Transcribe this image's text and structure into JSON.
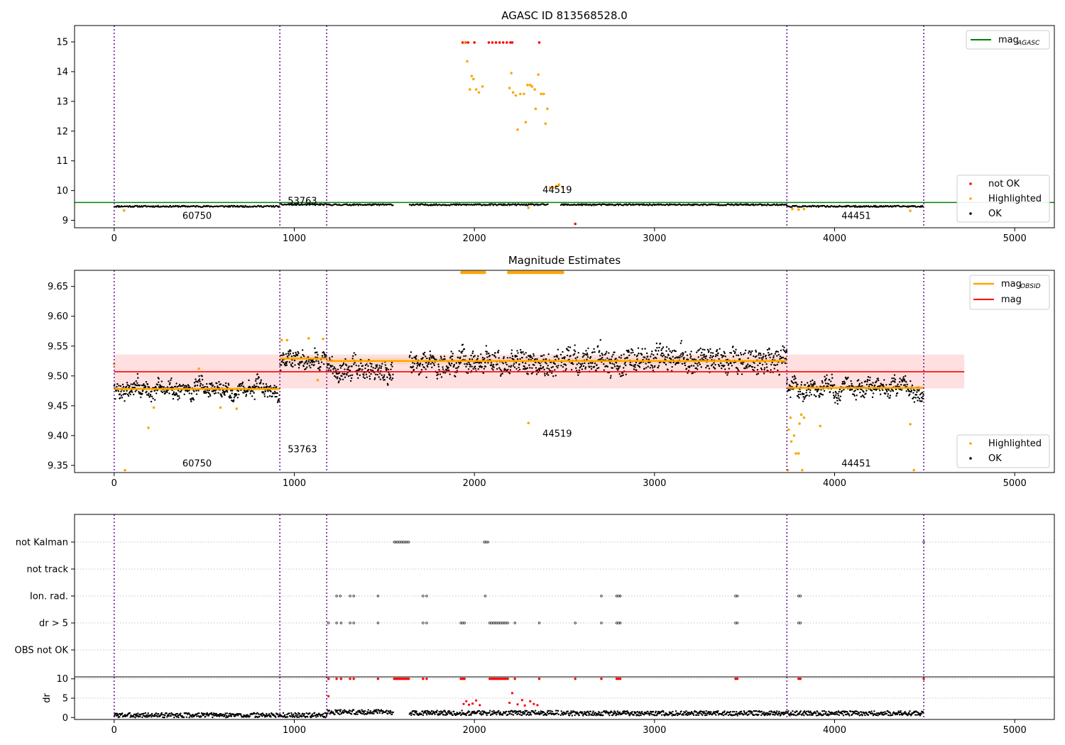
{
  "chart_data": [
    {
      "type": "scatter",
      "title": "AGASC ID 813568528.0",
      "xlim": [
        -220,
        5220
      ],
      "ylim": [
        8.75,
        15.55
      ],
      "x_ticks": [
        "0",
        "1000",
        "2000",
        "3000",
        "4000",
        "5000"
      ],
      "x_tick_values": [
        0,
        1000,
        2000,
        3000,
        4000,
        5000
      ],
      "y_ticks": [
        "9",
        "10",
        "11",
        "12",
        "13",
        "14",
        "15"
      ],
      "y_tick_values": [
        9,
        10,
        11,
        12,
        13,
        14,
        15
      ],
      "obs_boundaries": [
        0,
        920,
        1180,
        3735,
        4495
      ],
      "obs_labels": [
        {
          "text": "60750",
          "x": 460,
          "y": 9.05
        },
        {
          "text": "53763",
          "x": 1045,
          "y": 9.55
        },
        {
          "text": "44519",
          "x": 2460,
          "y": 9.92
        },
        {
          "text": "44451",
          "x": 4120,
          "y": 9.05
        }
      ],
      "mag_agasc": 9.6,
      "legend": {
        "position": "top-right",
        "entries": [
          "mag",
          "AGASC"
        ]
      },
      "legend2": {
        "position": "bottom-right",
        "entries": [
          "not OK",
          "Highlighted",
          "OK"
        ]
      },
      "segments": [
        {
          "x0": 0,
          "x1": 920,
          "mag": 9.47
        },
        {
          "x0": 920,
          "x1": 1180,
          "mag": 9.53
        },
        {
          "x0": 1180,
          "x1": 1550,
          "mag": 9.525
        },
        {
          "x0": 1640,
          "x1": 2410,
          "mag": 9.525
        },
        {
          "x0": 2480,
          "x1": 3735,
          "mag": 9.525
        },
        {
          "x0": 3735,
          "x1": 4495,
          "mag": 9.47
        }
      ],
      "series": [
        {
          "name": "not OK",
          "color": "#ff0000",
          "points": [
            [
              1935,
              14.98
            ],
            [
              1950,
              14.98
            ],
            [
              1965,
              14.98
            ],
            [
              2000,
              14.98
            ],
            [
              2080,
              14.98
            ],
            [
              2100,
              14.98
            ],
            [
              2120,
              14.98
            ],
            [
              2140,
              14.98
            ],
            [
              2160,
              14.98
            ],
            [
              2180,
              14.98
            ],
            [
              2200,
              14.98
            ],
            [
              2210,
              14.98
            ],
            [
              2360,
              14.98
            ],
            [
              2560,
              8.88
            ]
          ]
        },
        {
          "name": "Highlighted",
          "color": "#ffa500",
          "points": [
            [
              55,
              9.33
            ],
            [
              1945,
              14.98
            ],
            [
              1960,
              14.35
            ],
            [
              1975,
              13.4
            ],
            [
              1985,
              13.85
            ],
            [
              1995,
              13.75
            ],
            [
              2010,
              13.4
            ],
            [
              2025,
              13.3
            ],
            [
              2045,
              13.5
            ],
            [
              2195,
              13.45
            ],
            [
              2205,
              13.95
            ],
            [
              2215,
              13.3
            ],
            [
              2230,
              13.2
            ],
            [
              2240,
              12.05
            ],
            [
              2255,
              13.25
            ],
            [
              2275,
              13.25
            ],
            [
              2285,
              12.3
            ],
            [
              2295,
              13.55
            ],
            [
              2310,
              13.55
            ],
            [
              2320,
              13.5
            ],
            [
              2335,
              13.4
            ],
            [
              2340,
              12.75
            ],
            [
              2355,
              13.9
            ],
            [
              2370,
              13.25
            ],
            [
              2385,
              13.25
            ],
            [
              2395,
              12.25
            ],
            [
              2405,
              12.75
            ],
            [
              2420,
              10.1
            ],
            [
              2440,
              10.1
            ],
            [
              2455,
              10.15
            ],
            [
              2470,
              10.2
            ],
            [
              2490,
              10.1
            ],
            [
              2300,
              9.42
            ],
            [
              3765,
              9.38
            ],
            [
              3800,
              9.36
            ],
            [
              3830,
              9.38
            ],
            [
              4420,
              9.32
            ]
          ]
        }
      ]
    },
    {
      "type": "scatter",
      "title": "Magnitude Estimates",
      "xlim": [
        -220,
        5220
      ],
      "ylim": [
        9.338,
        9.677
      ],
      "x_ticks": [
        "0",
        "1000",
        "2000",
        "3000",
        "4000",
        "5000"
      ],
      "x_tick_values": [
        0,
        1000,
        2000,
        3000,
        4000,
        5000
      ],
      "y_ticks": [
        "9.35",
        "9.40",
        "9.45",
        "9.50",
        "9.55",
        "9.60",
        "9.65"
      ],
      "y_tick_values": [
        9.35,
        9.4,
        9.45,
        9.5,
        9.55,
        9.6,
        9.65
      ],
      "obs_boundaries": [
        0,
        920,
        1180,
        3735,
        4495
      ],
      "obs_labels": [
        {
          "text": "60750",
          "x": 460,
          "y": 9.348
        },
        {
          "text": "53763",
          "x": 1045,
          "y": 9.372
        },
        {
          "text": "44519",
          "x": 2460,
          "y": 9.398
        },
        {
          "text": "44451",
          "x": 4120,
          "y": 9.348
        }
      ],
      "mag": 9.507,
      "mag_band": [
        9.479,
        9.536
      ],
      "mag_extent": [
        0,
        4720
      ],
      "legend": {
        "position": "top-right",
        "entries": [
          "mag",
          "OBSID",
          "mag"
        ]
      },
      "legend2": {
        "position": "bottom-right",
        "entries": [
          "Highlighted",
          "OK"
        ]
      },
      "segments": [
        {
          "x0": 0,
          "x1": 920,
          "mag": 9.478,
          "err": 0.004
        },
        {
          "x0": 920,
          "x1": 1180,
          "mag": 9.529,
          "err": 0.006
        },
        {
          "x0": 1180,
          "x1": 3735,
          "mag": 9.525,
          "err": 0.006
        },
        {
          "x0": 3735,
          "x1": 4495,
          "mag": 9.48,
          "err": 0.004
        }
      ],
      "ok_levels": [
        {
          "x0": 0,
          "x1": 920,
          "center": 9.478,
          "spread": 0.03
        },
        {
          "x0": 920,
          "x1": 1180,
          "center": 9.53,
          "spread": 0.032
        },
        {
          "x0": 1180,
          "x1": 1550,
          "center": 9.51,
          "spread": 0.045
        },
        {
          "x0": 1640,
          "x1": 2470,
          "center": 9.522,
          "spread": 0.045
        },
        {
          "x0": 2480,
          "x1": 3735,
          "center": 9.525,
          "spread": 0.05
        },
        {
          "x0": 3735,
          "x1": 4495,
          "center": 9.478,
          "spread": 0.035
        }
      ],
      "highlighted_points": [
        [
          0,
          9.52
        ],
        [
          60,
          9.342
        ],
        [
          190,
          9.413
        ],
        [
          220,
          9.447
        ],
        [
          470,
          9.512
        ],
        [
          590,
          9.447
        ],
        [
          680,
          9.445
        ],
        [
          930,
          9.56
        ],
        [
          960,
          9.56
        ],
        [
          1080,
          9.563
        ],
        [
          1130,
          9.493
        ],
        [
          1160,
          9.562
        ],
        [
          2300,
          9.421
        ],
        [
          3740,
          9.342
        ],
        [
          3745,
          9.41
        ],
        [
          3755,
          9.43
        ],
        [
          3760,
          9.39
        ],
        [
          3775,
          9.4
        ],
        [
          3785,
          9.37
        ],
        [
          3800,
          9.37
        ],
        [
          3805,
          9.42
        ],
        [
          3815,
          9.435
        ],
        [
          3820,
          9.342
        ],
        [
          3830,
          9.43
        ],
        [
          3920,
          9.416
        ],
        [
          4420,
          9.419
        ],
        [
          4440,
          9.342
        ]
      ],
      "clipped_ranges": [
        [
          1930,
          2060
        ],
        [
          2190,
          2490
        ]
      ]
    },
    {
      "type": "scatter",
      "title": "",
      "flag_categories": [
        "not Kalman",
        "not track",
        "Ion. rad.",
        "dr > 5",
        "OBS not OK"
      ],
      "flag_points": {
        "not Kalman": [
          1555,
          1565,
          1575,
          1585,
          1595,
          1605,
          1615,
          1625,
          1635,
          2055,
          2065,
          2075,
          4495
        ],
        "not track": [],
        "Ion. rad.": [
          1235,
          1255,
          1310,
          1330,
          1465,
          1715,
          1735,
          2060,
          2705,
          2790,
          2800,
          2810,
          3450,
          3460,
          3800,
          3810
        ],
        "dr > 5": [
          1190,
          1235,
          1260,
          1310,
          1330,
          1465,
          1715,
          1735,
          1925,
          1935,
          1945,
          2085,
          2095,
          2105,
          2115,
          2125,
          2135,
          2145,
          2155,
          2165,
          2175,
          2185,
          2225,
          2360,
          2560,
          2705,
          2790,
          2800,
          2810,
          3450,
          3460,
          3800,
          3810
        ],
        "OBS not OK": []
      },
      "obs_boundaries": [
        0,
        920,
        1180,
        3735,
        4495
      ],
      "xlim": [
        -220,
        5220
      ]
    },
    {
      "type": "scatter",
      "title": "",
      "ylabel": "dr",
      "xlim": [
        -220,
        5220
      ],
      "ylim": [
        -0.5,
        10.5
      ],
      "x_ticks": [
        "0",
        "1000",
        "2000",
        "3000",
        "4000",
        "5000"
      ],
      "x_tick_values": [
        0,
        1000,
        2000,
        3000,
        4000,
        5000
      ],
      "y_ticks": [
        "0",
        "5",
        "10"
      ],
      "y_tick_values": [
        0,
        5,
        10
      ],
      "obs_boundaries": [
        0,
        920,
        1180,
        3735,
        4495
      ],
      "dr_levels": [
        {
          "x0": 0,
          "x1": 1180,
          "mean": 0.6
        },
        {
          "x0": 1180,
          "x1": 1550,
          "mean": 1.4
        },
        {
          "x0": 1640,
          "x1": 2470,
          "mean": 1.2
        },
        {
          "x0": 2480,
          "x1": 4495,
          "mean": 1.1
        }
      ],
      "red_points_top": [
        1190,
        1235,
        1260,
        1310,
        1330,
        1465,
        1555,
        1565,
        1575,
        1585,
        1595,
        1605,
        1615,
        1625,
        1635,
        1715,
        1735,
        1925,
        1935,
        1945,
        2085,
        2095,
        2105,
        2115,
        2125,
        2135,
        2145,
        2155,
        2165,
        2175,
        2185,
        2225,
        2360,
        2560,
        2705,
        2790,
        2800,
        2810,
        3450,
        3460,
        3800,
        3810,
        4495
      ],
      "red_points_low": [
        [
          1190,
          5.5
        ],
        [
          1940,
          3.5
        ],
        [
          1955,
          4.2
        ],
        [
          1970,
          3.3
        ],
        [
          1990,
          3.6
        ],
        [
          2010,
          4.4
        ],
        [
          2030,
          3.2
        ],
        [
          2195,
          3.8
        ],
        [
          2210,
          6.3
        ],
        [
          2240,
          3.4
        ],
        [
          2265,
          4.5
        ],
        [
          2280,
          3.1
        ],
        [
          2310,
          4.2
        ],
        [
          2330,
          3.5
        ],
        [
          2350,
          3.2
        ]
      ]
    }
  ]
}
